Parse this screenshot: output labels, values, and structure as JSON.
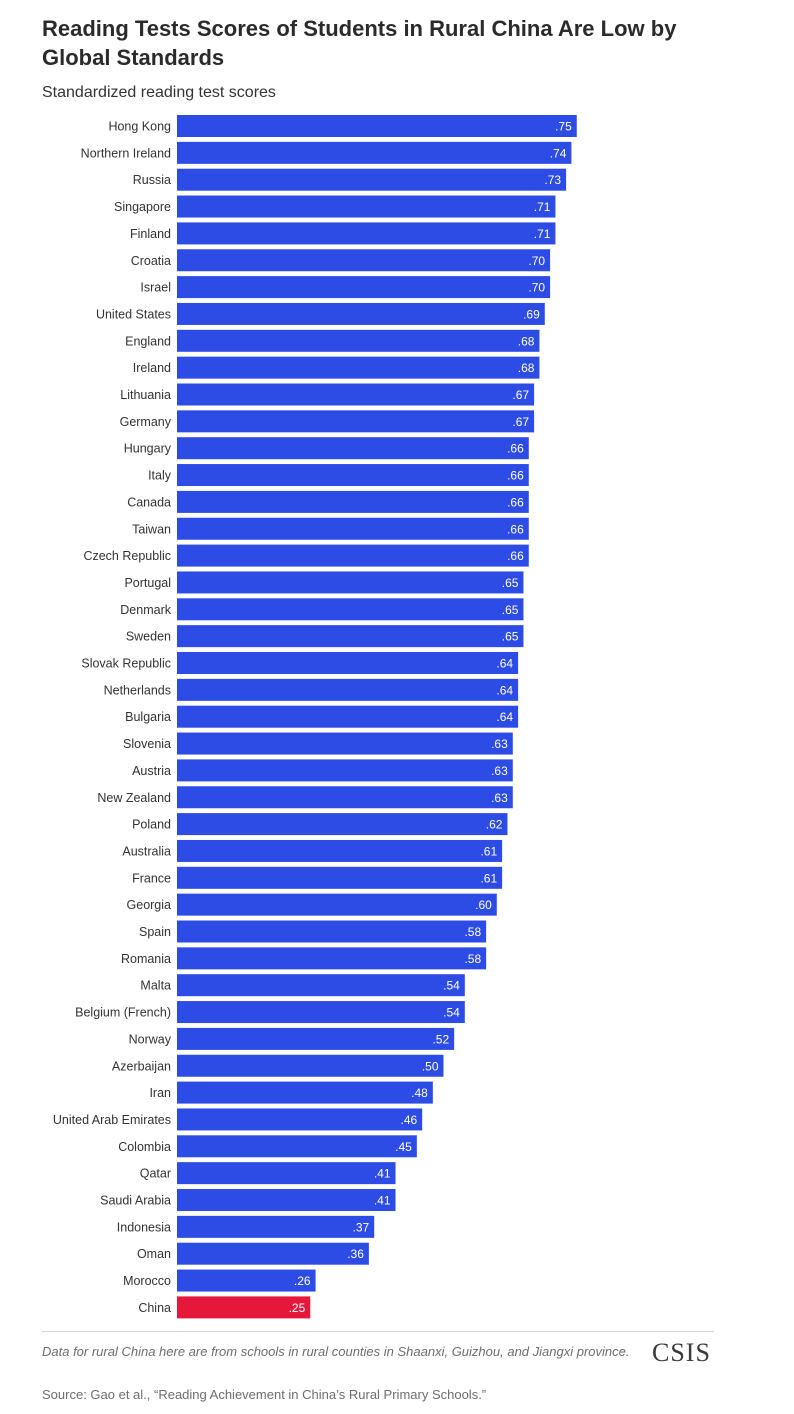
{
  "header": {
    "title": "Reading Tests Scores of Students in Rural China Are Low by Global Standards",
    "subtitle": "Standardized reading test scores"
  },
  "colors": {
    "bar": "#2d4ce6",
    "highlight": "#e5183c",
    "label": "#333333",
    "value_label": "#ffffff"
  },
  "chart_data": {
    "type": "bar",
    "orientation": "horizontal",
    "title": "Reading Tests Scores of Students in Rural China Are Low by Global Standards",
    "subtitle": "Standardized reading test scores",
    "xlabel": "",
    "ylabel": "",
    "xlim": [
      0,
      0.75
    ],
    "grid": false,
    "highlight_category": "China",
    "categories": [
      "Hong Kong",
      "Northern Ireland",
      "Russia",
      "Singapore",
      "Finland",
      "Croatia",
      "Israel",
      "United States",
      "England",
      "Ireland",
      "Lithuania",
      "Germany",
      "Hungary",
      "Italy",
      "Canada",
      "Taiwan",
      "Czech Republic",
      "Portugal",
      "Denmark",
      "Sweden",
      "Slovak Republic",
      "Netherlands",
      "Bulgaria",
      "Slovenia",
      "Austria",
      "New Zealand",
      "Poland",
      "Australia",
      "France",
      "Georgia",
      "Spain",
      "Romania",
      "Malta",
      "Belgium (French)",
      "Norway",
      "Azerbaijan",
      "Iran",
      "United Arab Emirates",
      "Colombia",
      "Qatar",
      "Saudi Arabia",
      "Indonesia",
      "Oman",
      "Morocco",
      "China"
    ],
    "values": [
      0.75,
      0.74,
      0.73,
      0.71,
      0.71,
      0.7,
      0.7,
      0.69,
      0.68,
      0.68,
      0.67,
      0.67,
      0.66,
      0.66,
      0.66,
      0.66,
      0.66,
      0.65,
      0.65,
      0.65,
      0.64,
      0.64,
      0.64,
      0.63,
      0.63,
      0.63,
      0.62,
      0.61,
      0.61,
      0.6,
      0.58,
      0.58,
      0.54,
      0.54,
      0.52,
      0.5,
      0.48,
      0.46,
      0.45,
      0.41,
      0.41,
      0.37,
      0.36,
      0.26,
      0.25
    ],
    "value_labels": [
      ".75",
      ".74",
      ".73",
      ".71",
      ".71",
      ".70",
      ".70",
      ".69",
      ".68",
      ".68",
      ".67",
      ".67",
      ".66",
      ".66",
      ".66",
      ".66",
      ".66",
      ".65",
      ".65",
      ".65",
      ".64",
      ".64",
      ".64",
      ".63",
      ".63",
      ".63",
      ".62",
      ".61",
      ".61",
      ".60",
      ".58",
      ".58",
      ".54",
      ".54",
      ".52",
      ".50",
      ".48",
      ".46",
      ".45",
      ".41",
      ".41",
      ".37",
      ".36",
      ".26",
      ".25"
    ]
  },
  "footer": {
    "note": "Data for rural China here are from schools in rural counties in Shaanxi, Guizhou, and Jiangxi province.",
    "source": "Source: Gao et al., “Reading Achievement in China’s Rural Primary Schools.”",
    "logo": "CSIS"
  }
}
